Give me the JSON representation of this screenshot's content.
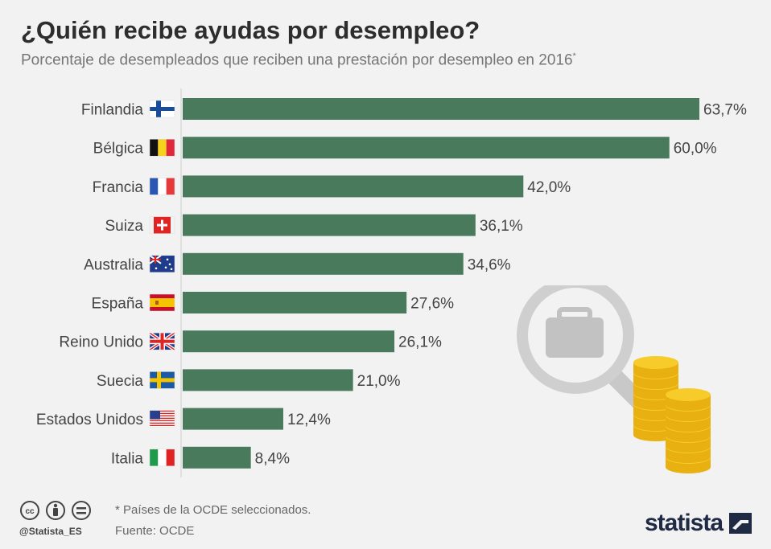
{
  "header": {
    "title": "¿Quién recibe ayudas por desempleo?",
    "subtitle": "Porcentaje de desempleados que reciben una prestación por desempleo en 2016",
    "subtitle_mark": "*"
  },
  "chart_data": {
    "type": "bar",
    "orientation": "horizontal",
    "title": "¿Quién recibe ayudas por desempleo?",
    "categories": [
      "Finlandia",
      "Bélgica",
      "Francia",
      "Suiza",
      "Australia",
      "España",
      "Reino Unido",
      "Suecia",
      "Estados Unidos",
      "Italia"
    ],
    "values": [
      63.7,
      60.0,
      42.0,
      36.1,
      34.6,
      27.6,
      26.1,
      21.0,
      12.4,
      8.4
    ],
    "value_labels": [
      "63,7%",
      "60,0%",
      "42,0%",
      "36,1%",
      "34,6%",
      "27,6%",
      "26,1%",
      "21,0%",
      "12,4%",
      "8,4%"
    ],
    "xlim": [
      0,
      63.7
    ],
    "bar_color": "#4a7a5c",
    "grid": false
  },
  "footer": {
    "note": "* Países de la OCDE seleccionados.",
    "source": "Fuente: OCDE",
    "handle": "@Statista_ES",
    "logo": "statista"
  },
  "icons": {
    "license": [
      "cc-icon",
      "by-icon",
      "nd-icon"
    ],
    "illustration": [
      "magnifier-icon",
      "briefcase-icon",
      "coins-icon"
    ]
  },
  "colors": {
    "bar": "#4a7a5c",
    "background": "#f2f2f2",
    "coin": "#f5c518",
    "magnifier": "#cfcfcf"
  }
}
